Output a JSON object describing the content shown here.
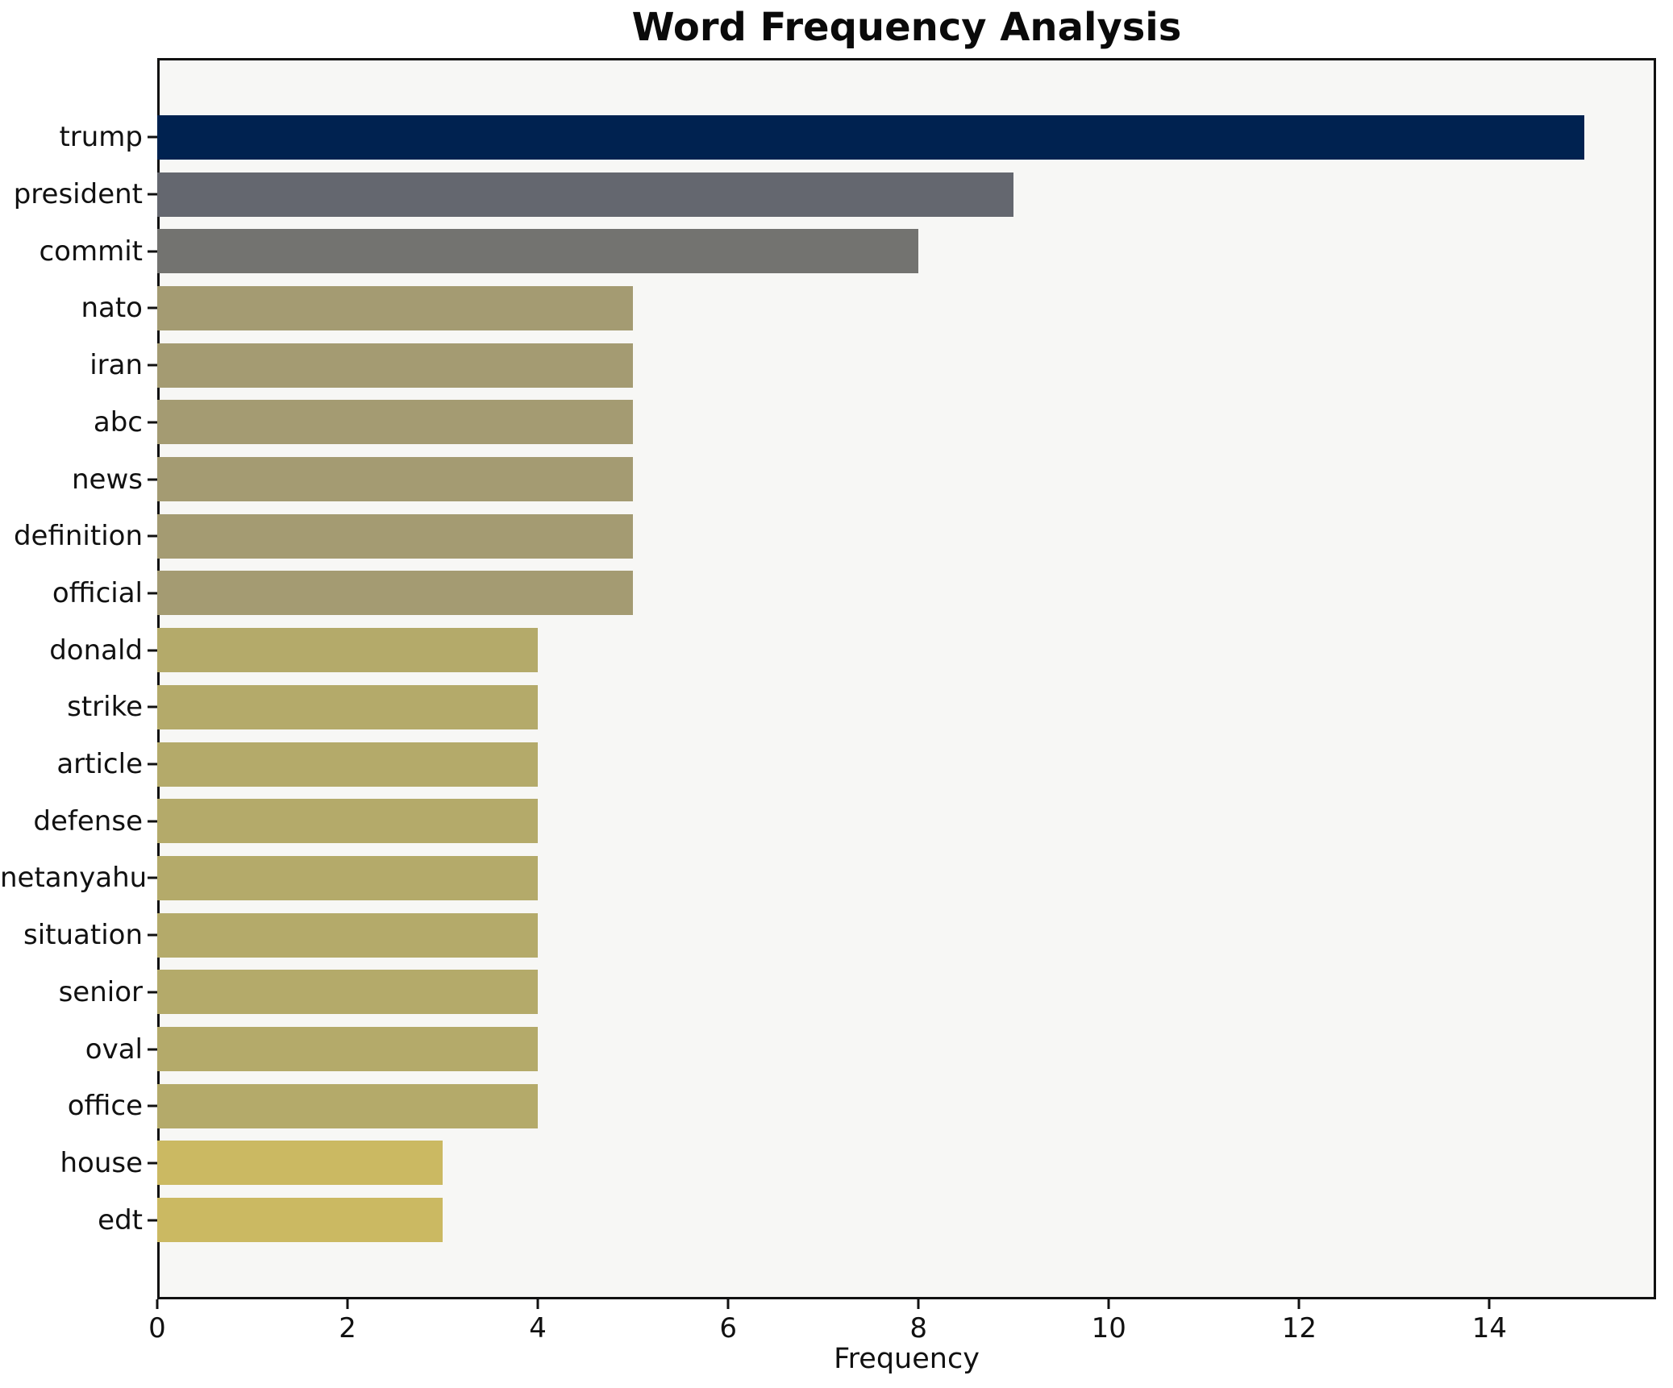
{
  "chart_data": {
    "type": "bar",
    "orientation": "horizontal",
    "title": "Word Frequency Analysis",
    "xlabel": "Frequency",
    "ylabel": "",
    "xlim": [
      0,
      15.75
    ],
    "xticks": [
      0,
      2,
      4,
      6,
      8,
      10,
      12,
      14
    ],
    "grid": false,
    "legend": null,
    "colormap": "cividis-reversed-by-value",
    "axes_background": "#f7f7f5",
    "figure_background": "#ffffff",
    "categories": [
      "trump",
      "president",
      "commit",
      "nato",
      "iran",
      "abc",
      "news",
      "definition",
      "official",
      "donald",
      "strike",
      "article",
      "defense",
      "netanyahu",
      "situation",
      "senior",
      "oval",
      "office",
      "house",
      "edt"
    ],
    "values": [
      15,
      9,
      8,
      5,
      5,
      5,
      5,
      5,
      5,
      4,
      4,
      4,
      4,
      4,
      4,
      4,
      4,
      4,
      3,
      3
    ],
    "bar_colors": [
      "#002250",
      "#64676f",
      "#737370",
      "#a49b72",
      "#a49b72",
      "#a49b72",
      "#a49b72",
      "#a49b72",
      "#a49b72",
      "#b4aa6a",
      "#b4aa6a",
      "#b4aa6a",
      "#b4aa6a",
      "#b4aa6a",
      "#b4aa6a",
      "#b4aa6a",
      "#b4aa6a",
      "#b4aa6a",
      "#cbb962",
      "#cbb962"
    ]
  }
}
